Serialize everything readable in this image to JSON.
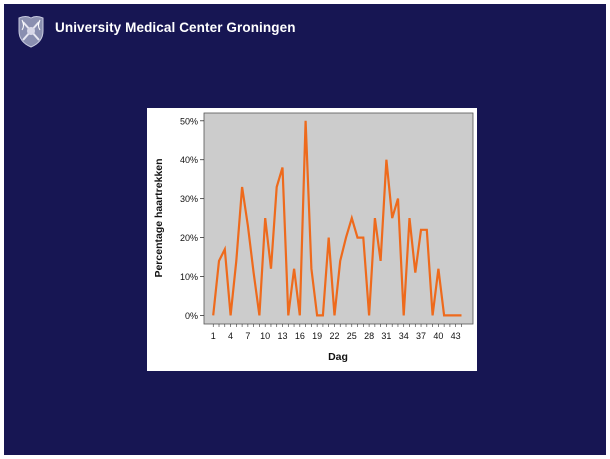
{
  "header": {
    "title": "University Medical Center Groningen",
    "logo_icon": "university-crest-icon"
  },
  "colors": {
    "slide_bg": "#171653",
    "plot_bg": "#cccccc",
    "line": "#ee6a1c"
  },
  "chart_data": {
    "type": "line",
    "title": "",
    "xlabel": "Dag",
    "ylabel": "Percentage haartrekken",
    "x": [
      1,
      2,
      3,
      4,
      5,
      6,
      7,
      8,
      9,
      10,
      11,
      12,
      13,
      14,
      15,
      16,
      17,
      18,
      19,
      20,
      21,
      22,
      23,
      24,
      25,
      26,
      27,
      28,
      29,
      30,
      31,
      32,
      33,
      34,
      35,
      36,
      37,
      38,
      39,
      40,
      41,
      42,
      43,
      44
    ],
    "values": [
      0,
      14,
      17,
      0,
      14,
      33,
      23,
      11,
      0,
      25,
      12,
      33,
      38,
      0,
      12,
      0,
      50,
      12,
      0,
      0,
      20,
      0,
      14,
      20,
      25,
      20,
      20,
      0,
      25,
      14,
      40,
      25,
      30,
      0,
      25,
      11,
      22,
      22,
      0,
      12,
      0,
      0,
      0,
      0
    ],
    "xticks": [
      1,
      4,
      7,
      10,
      13,
      16,
      19,
      22,
      25,
      28,
      31,
      34,
      37,
      40,
      43
    ],
    "yticks": [
      0,
      10,
      20,
      30,
      40,
      50
    ],
    "ytick_labels": [
      "0%",
      "10%",
      "20%",
      "30%",
      "40%",
      "50%"
    ],
    "ylim": [
      -2.2,
      52
    ],
    "xlim": [
      -0.6,
      46
    ],
    "grid": false,
    "legend": "none"
  }
}
